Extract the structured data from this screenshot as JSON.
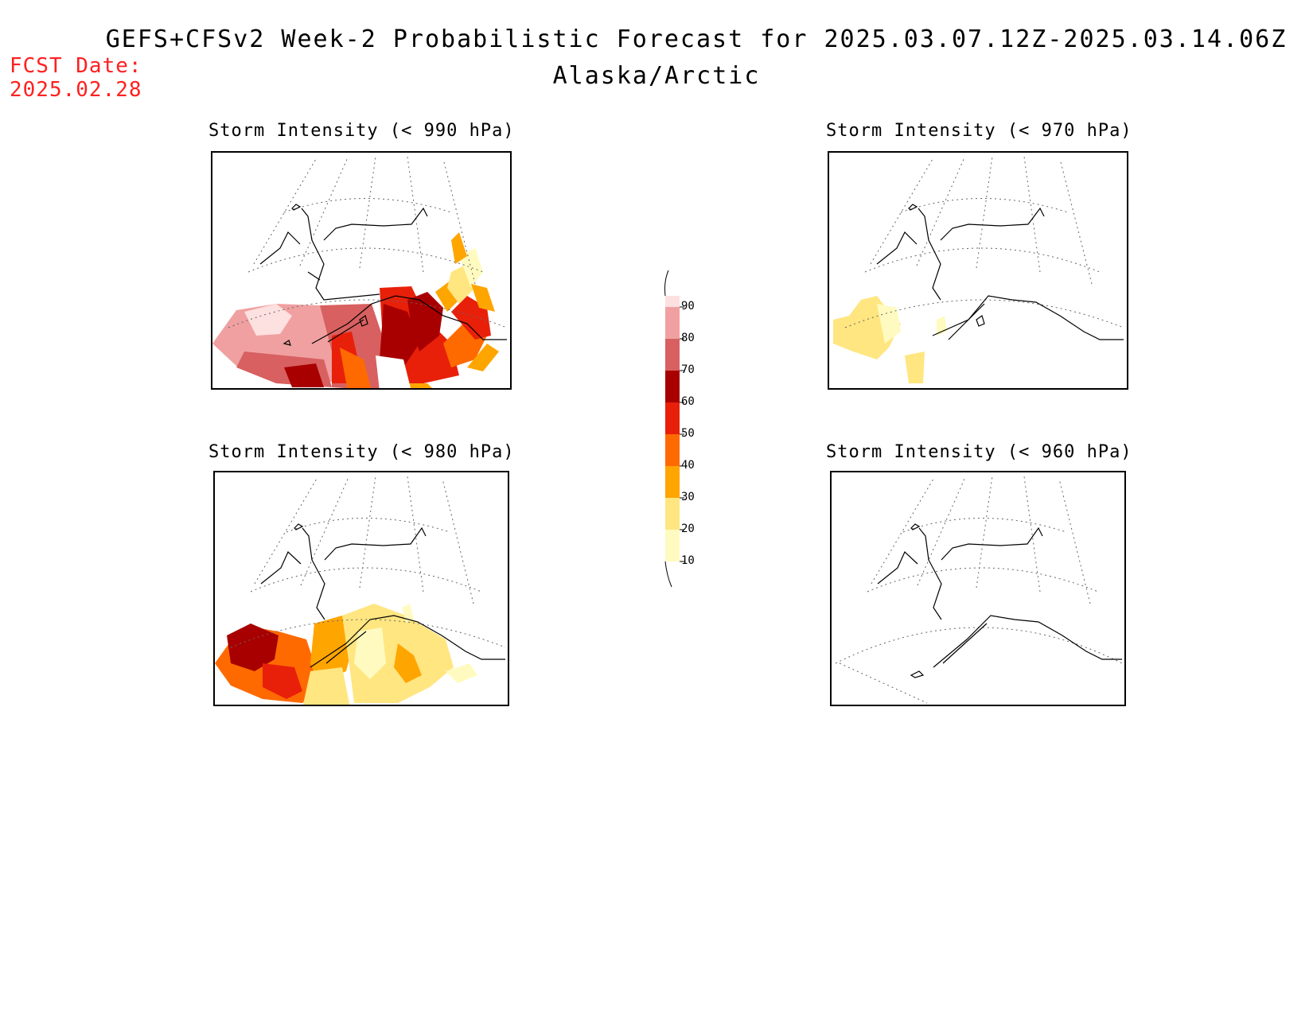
{
  "header": {
    "title": "GEFS+CFSv2 Week-2 Probabilistic Forecast for 2025.03.07.12Z-2025.03.14.06Z",
    "subtitle": "Alaska/Arctic",
    "fcst_label": "FCST Date:",
    "fcst_date": "2025.02.28"
  },
  "panels": [
    {
      "id": "p990",
      "title": "Storm Intensity (< 990 hPa)"
    },
    {
      "id": "p970",
      "title": "Storm Intensity (< 970 hPa)"
    },
    {
      "id": "p980",
      "title": "Storm Intensity (< 980 hPa)"
    },
    {
      "id": "p960",
      "title": "Storm Intensity (< 960 hPa)"
    }
  ],
  "legend": {
    "levels": [
      "10",
      "20",
      "30",
      "40",
      "50",
      "60",
      "70",
      "80",
      "90"
    ],
    "colors": [
      "#fffbc0",
      "#ffe680",
      "#ffa500",
      "#ff6a00",
      "#e8200a",
      "#a80000",
      "#d86060",
      "#f0a0a0",
      "#fde0e0"
    ]
  }
}
